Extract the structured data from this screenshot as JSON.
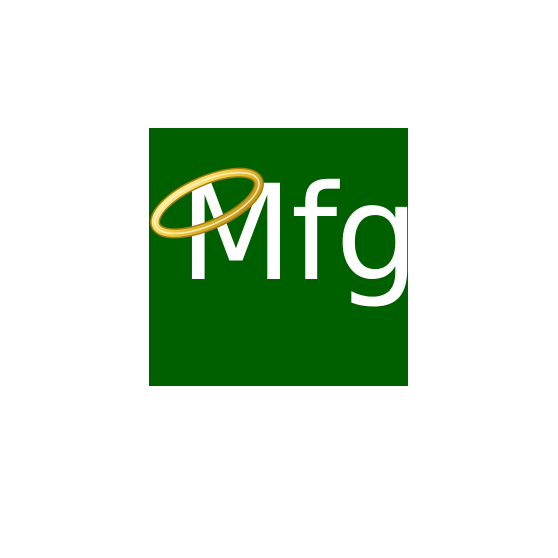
{
  "logo": {
    "text": "Mfg",
    "tile_color": "#006000",
    "text_color": "#ffffff",
    "halo_icon": "halo-ring-icon",
    "halo_color": "#e8c23a"
  }
}
